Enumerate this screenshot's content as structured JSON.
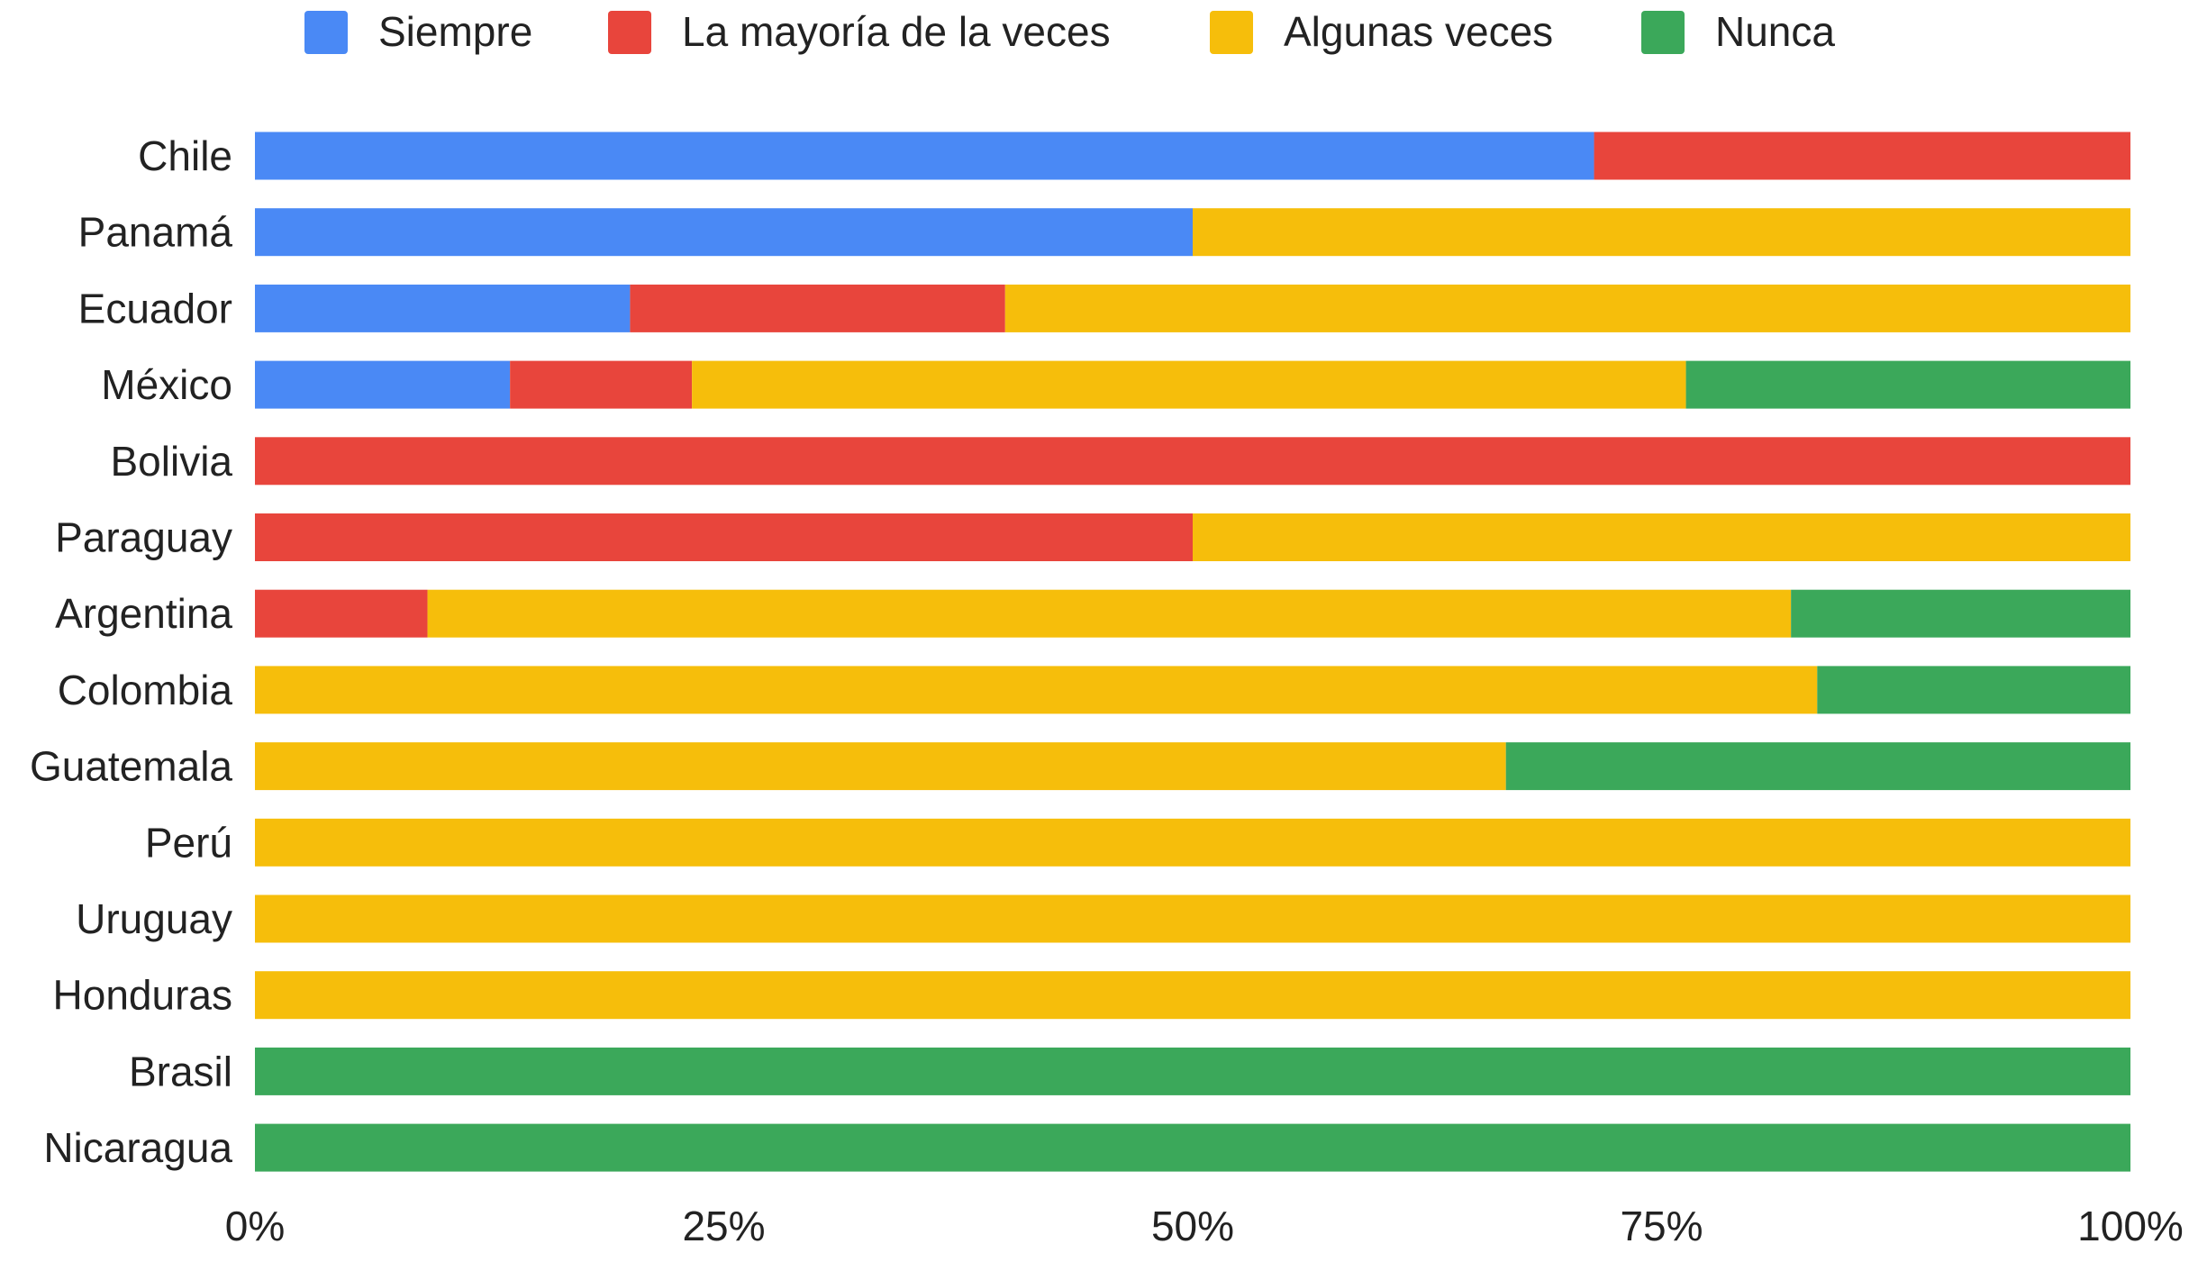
{
  "chart_data": {
    "type": "bar",
    "orientation": "horizontal",
    "stacked": "percent",
    "title": "",
    "xlabel": "",
    "ylabel": "",
    "xlim": [
      0,
      100
    ],
    "x_ticks": [
      "0%",
      "25%",
      "50%",
      "75%",
      "100%"
    ],
    "x_tick_values": [
      0,
      25,
      50,
      75,
      100
    ],
    "grid": false,
    "legend_position": "top",
    "categories": [
      "Chile",
      "Panamá",
      "Ecuador",
      "México",
      "Bolivia",
      "Paraguay",
      "Argentina",
      "Colombia",
      "Guatemala",
      "Perú",
      "Uruguay",
      "Honduras",
      "Brasil",
      "Nicaragua"
    ],
    "series": [
      {
        "name": "Siempre",
        "color": "#4a89f5",
        "values": [
          71.4,
          50,
          20,
          13.6,
          0,
          0,
          0,
          0,
          0,
          0,
          0,
          0,
          0,
          0
        ]
      },
      {
        "name": "La mayoría de la veces",
        "color": "#e8453c",
        "values": [
          28.6,
          0,
          20,
          9.7,
          100,
          50,
          9.2,
          0,
          0,
          0,
          0,
          0,
          0,
          0
        ]
      },
      {
        "name": "Algunas veces",
        "color": "#f6be0b",
        "values": [
          0,
          50,
          60,
          53,
          0,
          50,
          72.7,
          83.3,
          66.7,
          100,
          100,
          100,
          0,
          0
        ]
      },
      {
        "name": "Nunca",
        "color": "#3ba85a",
        "values": [
          0,
          0,
          0,
          23.7,
          0,
          0,
          18.1,
          16.7,
          33.3,
          0,
          0,
          0,
          100,
          100
        ]
      }
    ]
  }
}
